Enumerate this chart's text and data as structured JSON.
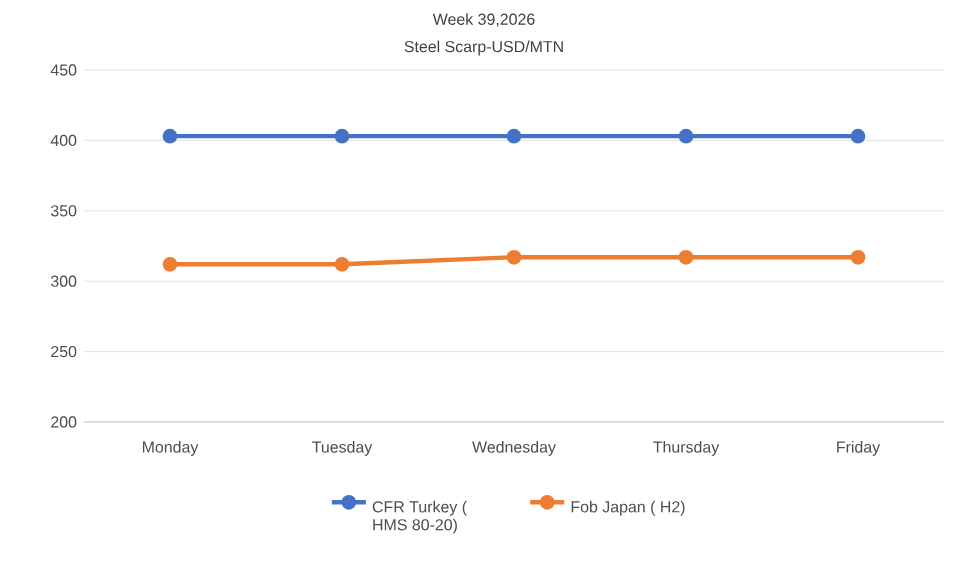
{
  "chart_data": {
    "type": "line",
    "title": "Week 39,2026",
    "subtitle": "Steel Scarp-USD/MTN",
    "categories": [
      "Monday",
      "Tuesday",
      "Wednesday",
      "Thursday",
      "Friday"
    ],
    "series": [
      {
        "name": "CFR Turkey ( HMS 80-20)",
        "color": "#4472c4",
        "values": [
          403,
          403,
          403,
          403,
          403
        ]
      },
      {
        "name": "Fob Japan ( H2)",
        "color": "#ed7d31",
        "values": [
          312,
          312,
          317,
          317,
          317
        ]
      }
    ],
    "ylim": [
      200,
      450
    ],
    "yticks": [
      200,
      250,
      300,
      350,
      400,
      450
    ],
    "grid": "y",
    "legend": "bottom",
    "marker": "circle",
    "line_style": "solid"
  }
}
